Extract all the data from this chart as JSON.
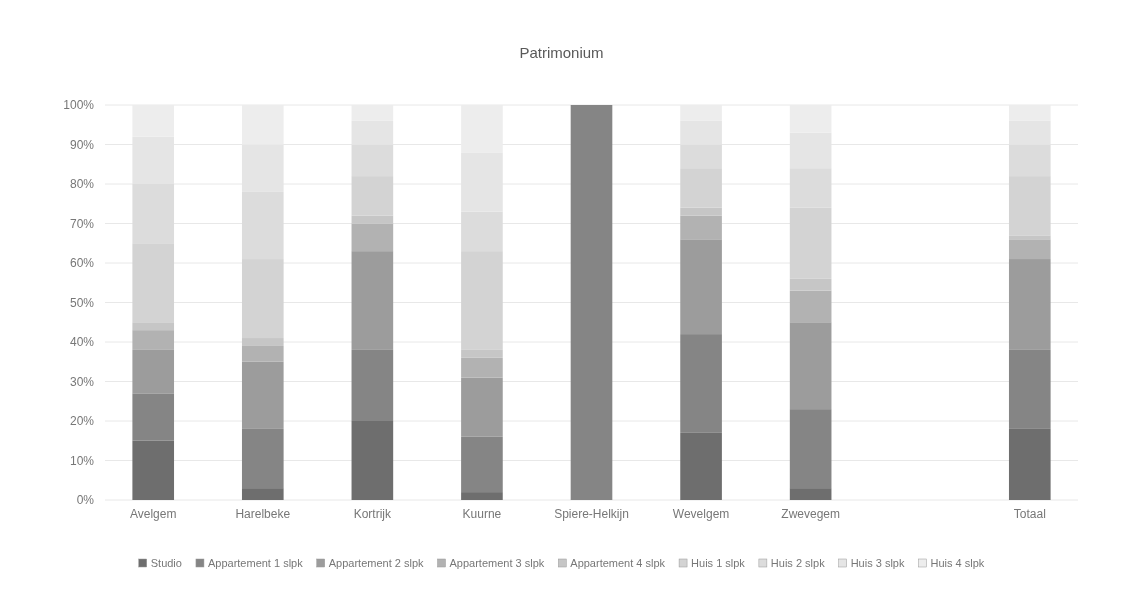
{
  "chart_data": {
    "type": "bar",
    "stacked": true,
    "title": "Patrimonium",
    "categories": [
      "Avelgem",
      "Harelbeke",
      "Kortrijk",
      "Kuurne",
      "Spiere-Helkijn",
      "Wevelgem",
      "Zwevegem",
      null,
      "Totaal"
    ],
    "series": [
      {
        "name": "Studio",
        "color": "#6e6e6e",
        "values": [
          15,
          3,
          20,
          2,
          0,
          17,
          3,
          null,
          18
        ]
      },
      {
        "name": "Appartement 1 slpk",
        "color": "#858585",
        "values": [
          12,
          15,
          18,
          14,
          100,
          25,
          20,
          null,
          20
        ]
      },
      {
        "name": "Appartement 2 slpk",
        "color": "#9c9c9c",
        "values": [
          11,
          17,
          25,
          15,
          0,
          24,
          22,
          null,
          23
        ]
      },
      {
        "name": "Appartement 3 slpk",
        "color": "#b2b2b2",
        "values": [
          5,
          4,
          7,
          5,
          0,
          6,
          8,
          null,
          5
        ]
      },
      {
        "name": "Appartement 4 slpk",
        "color": "#c6c6c6",
        "values": [
          2,
          2,
          2,
          2,
          0,
          2,
          3,
          null,
          1
        ]
      },
      {
        "name": "Huis 1 slpk",
        "color": "#d3d3d3",
        "values": [
          20,
          20,
          10,
          25,
          0,
          10,
          18,
          null,
          15
        ]
      },
      {
        "name": "Huis 2 slpk",
        "color": "#dcdcdc",
        "values": [
          15,
          17,
          8,
          10,
          0,
          6,
          10,
          null,
          8
        ]
      },
      {
        "name": "Huis 3 slpk",
        "color": "#e5e5e5",
        "values": [
          12,
          12,
          6,
          15,
          0,
          6,
          9,
          null,
          6
        ]
      },
      {
        "name": "Huis 4 slpk",
        "color": "#ededed",
        "values": [
          8,
          10,
          4,
          12,
          0,
          4,
          7,
          null,
          4
        ]
      }
    ],
    "ylim": [
      0,
      100
    ],
    "yticks": [
      {
        "value": 0,
        "label": "0%"
      },
      {
        "value": 10,
        "label": "10%"
      },
      {
        "value": 20,
        "label": "20%"
      },
      {
        "value": 30,
        "label": "30%"
      },
      {
        "value": 40,
        "label": "40%"
      },
      {
        "value": 50,
        "label": "50%"
      },
      {
        "value": 60,
        "label": "60%"
      },
      {
        "value": 70,
        "label": "70%"
      },
      {
        "value": 80,
        "label": "80%"
      },
      {
        "value": 90,
        "label": "90%"
      },
      {
        "value": 100,
        "label": "100%"
      }
    ],
    "grid": "y",
    "legend": "bottom"
  }
}
